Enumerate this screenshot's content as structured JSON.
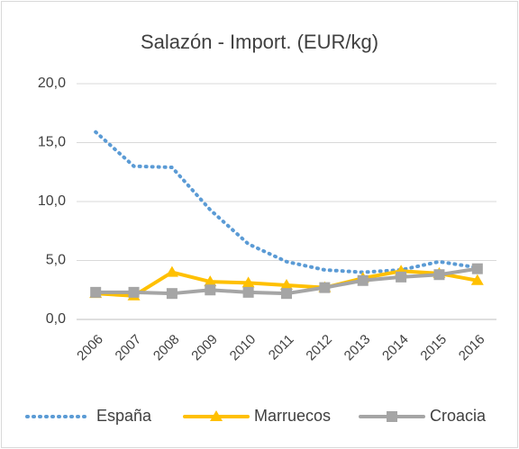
{
  "chart_data": {
    "type": "line",
    "title": "Salazón - Import. (EUR/kg)",
    "categories": [
      "2006",
      "2007",
      "2008",
      "2009",
      "2010",
      "2011",
      "2012",
      "2013",
      "2014",
      "2015",
      "2016"
    ],
    "series": [
      {
        "name": "España",
        "color": "#5b9bd5",
        "values": [
          15.9,
          13.0,
          12.9,
          9.3,
          6.4,
          4.9,
          4.2,
          4.0,
          4.2,
          4.9,
          4.4
        ]
      },
      {
        "name": "Marruecos",
        "color": "#ffc000",
        "values": [
          2.2,
          2.0,
          4.0,
          3.2,
          3.1,
          2.9,
          2.7,
          3.5,
          4.1,
          3.9,
          3.3
        ]
      },
      {
        "name": "Croacia",
        "color": "#a5a5a5",
        "values": [
          2.3,
          2.3,
          2.2,
          2.5,
          2.3,
          2.2,
          2.7,
          3.3,
          3.6,
          3.8,
          4.3
        ]
      }
    ],
    "ylim": [
      0,
      20
    ],
    "yticks": [
      {
        "value": 0,
        "label": "0,0"
      },
      {
        "value": 5,
        "label": "5,0"
      },
      {
        "value": 10,
        "label": "10,0"
      },
      {
        "value": 15,
        "label": "15,0"
      },
      {
        "value": 20,
        "label": "20,0"
      }
    ],
    "legend": "bottom"
  }
}
